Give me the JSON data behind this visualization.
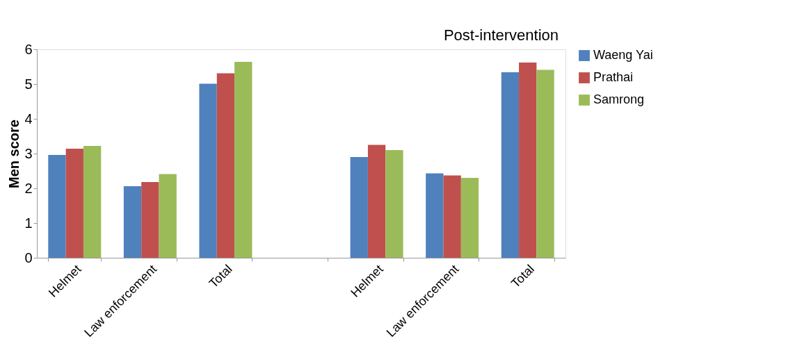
{
  "chart_data": {
    "type": "bar",
    "ylabel": "Men score",
    "categories": [
      "Helmet",
      "Law enforcement",
      "Total",
      null,
      "Helmet",
      "Law enforcement",
      "Total"
    ],
    "series": [
      {
        "name": "Waeng Yai",
        "color": "#4f81bd",
        "values": [
          2.96,
          2.06,
          5.01,
          null,
          2.9,
          2.43,
          5.34
        ]
      },
      {
        "name": "Prathai",
        "color": "#c0504d",
        "values": [
          3.14,
          2.18,
          5.31,
          null,
          3.25,
          2.37,
          5.62
        ]
      },
      {
        "name": "Samrong",
        "color": "#9bbb59",
        "values": [
          3.22,
          2.41,
          5.64,
          null,
          3.1,
          2.3,
          5.41
        ]
      }
    ],
    "ylim": [
      0,
      6
    ],
    "yticks": [
      0,
      1,
      2,
      3,
      4,
      5,
      6
    ],
    "grid": false,
    "legend": "right",
    "annotations": [
      "Post-intervention"
    ]
  }
}
